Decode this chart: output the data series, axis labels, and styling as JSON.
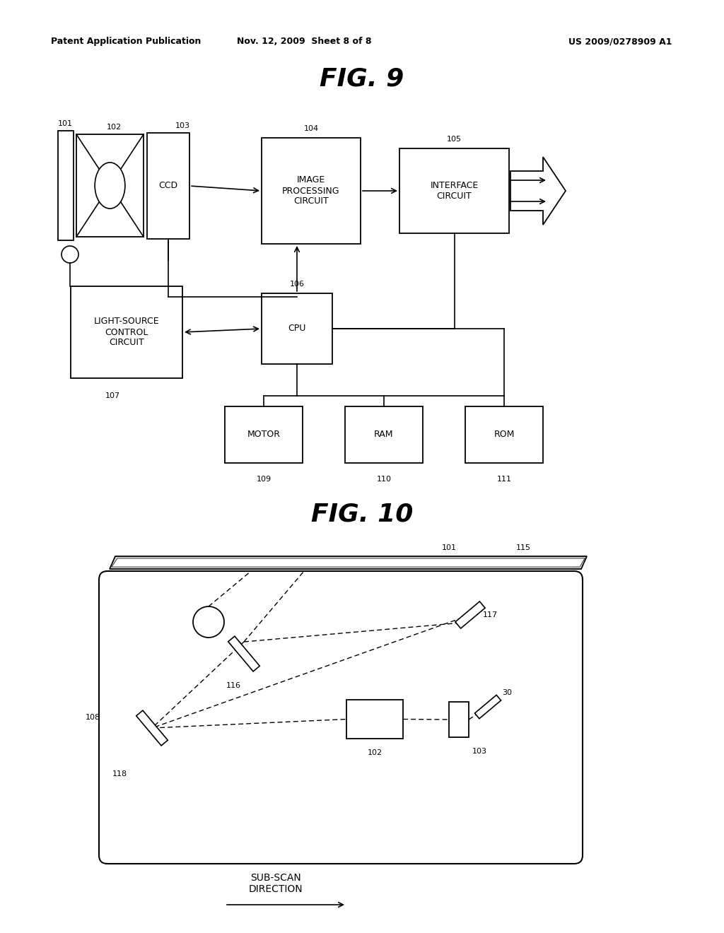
{
  "bg_color": "#ffffff",
  "header_left": "Patent Application Publication",
  "header_center": "Nov. 12, 2009  Sheet 8 of 8",
  "header_right": "US 2009/0278909 A1",
  "fig9_title": "FIG. 9",
  "fig10_title": "FIG. 10"
}
